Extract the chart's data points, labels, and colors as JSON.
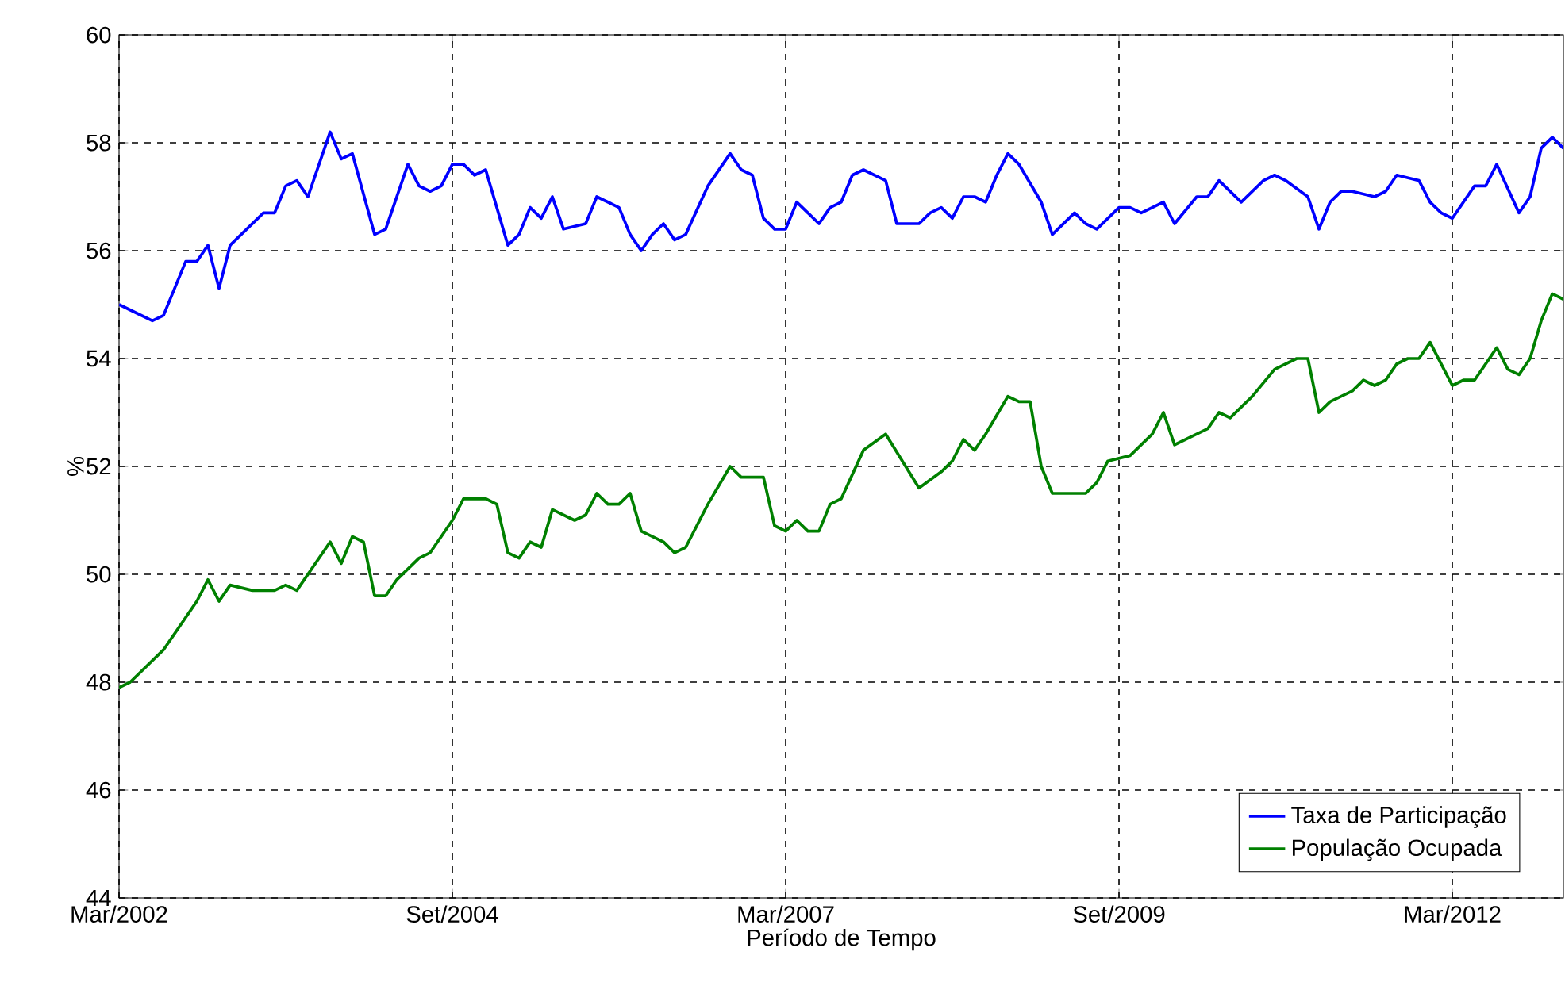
{
  "chart_data": {
    "type": "line",
    "xlabel": "Período de Tempo",
    "ylabel": "%",
    "xlim": [
      "2002-03",
      "2013-01"
    ],
    "ylim": [
      44,
      60
    ],
    "xticks": [
      {
        "value": "2002-03",
        "label": "Mar/2002"
      },
      {
        "value": "2004-09",
        "label": "Set/2004"
      },
      {
        "value": "2007-03",
        "label": "Mar/2007"
      },
      {
        "value": "2009-09",
        "label": "Set/2009"
      },
      {
        "value": "2012-03",
        "label": "Mar/2012"
      }
    ],
    "yticks": [
      44,
      46,
      48,
      50,
      52,
      54,
      56,
      58,
      60
    ],
    "grid": true,
    "legend": "bottom right",
    "line_style": "solid",
    "series": [
      {
        "name": "Taxa de Participação",
        "color": "#0000ff",
        "x": [
          "2002-03",
          "2002-04",
          "2002-06",
          "2002-07",
          "2002-09",
          "2002-10",
          "2002-11",
          "2002-12",
          "2003-01",
          "2003-02",
          "2003-04",
          "2003-05",
          "2003-06",
          "2003-07",
          "2003-08",
          "2003-09",
          "2003-10",
          "2003-11",
          "2003-12",
          "2004-02",
          "2004-03",
          "2004-04",
          "2004-05",
          "2004-06",
          "2004-07",
          "2004-08",
          "2004-09",
          "2004-10",
          "2004-11",
          "2004-12",
          "2005-02",
          "2005-03",
          "2005-04",
          "2005-05",
          "2005-06",
          "2005-07",
          "2005-09",
          "2005-10",
          "2005-11",
          "2005-12",
          "2006-01",
          "2006-02",
          "2006-03",
          "2006-04",
          "2006-05",
          "2006-06",
          "2006-08",
          "2006-10",
          "2006-11",
          "2006-12",
          "2007-01",
          "2007-02",
          "2007-03",
          "2007-04",
          "2007-06",
          "2007-07",
          "2007-08",
          "2007-09",
          "2007-10",
          "2007-12",
          "2008-01",
          "2008-03",
          "2008-04",
          "2008-05",
          "2008-06",
          "2008-07",
          "2008-08",
          "2008-09",
          "2008-10",
          "2008-11",
          "2008-12",
          "2009-02",
          "2009-03",
          "2009-05",
          "2009-06",
          "2009-07",
          "2009-09",
          "2009-10",
          "2009-11",
          "2010-01",
          "2010-02",
          "2010-04",
          "2010-05",
          "2010-06",
          "2010-08",
          "2010-10",
          "2010-11",
          "2010-12",
          "2011-02",
          "2011-03",
          "2011-04",
          "2011-05",
          "2011-06",
          "2011-08",
          "2011-09",
          "2011-10",
          "2011-12",
          "2012-01",
          "2012-02",
          "2012-03",
          "2012-05",
          "2012-06",
          "2012-07",
          "2012-09",
          "2012-10",
          "2012-11",
          "2012-12",
          "2013-01"
        ],
        "values": [
          55.0,
          54.9,
          54.7,
          54.8,
          55.8,
          55.8,
          56.1,
          55.3,
          56.1,
          56.3,
          56.7,
          56.7,
          57.2,
          57.3,
          57.0,
          57.6,
          58.2,
          57.7,
          57.8,
          56.3,
          56.4,
          57.0,
          57.6,
          57.2,
          57.1,
          57.2,
          57.6,
          57.6,
          57.4,
          57.5,
          56.1,
          56.3,
          56.8,
          56.6,
          57.0,
          56.4,
          56.5,
          57.0,
          56.9,
          56.8,
          56.3,
          56.0,
          56.3,
          56.5,
          56.2,
          56.3,
          57.2,
          57.8,
          57.5,
          57.4,
          56.6,
          56.4,
          56.4,
          56.9,
          56.5,
          56.8,
          56.9,
          57.4,
          57.5,
          57.3,
          56.5,
          56.5,
          56.7,
          56.8,
          56.6,
          57.0,
          57.0,
          56.9,
          57.4,
          57.8,
          57.6,
          56.9,
          56.3,
          56.7,
          56.5,
          56.4,
          56.8,
          56.8,
          56.7,
          56.9,
          56.5,
          57.0,
          57.0,
          57.3,
          56.9,
          57.3,
          57.4,
          57.3,
          57.0,
          56.4,
          56.9,
          57.1,
          57.1,
          57.0,
          57.1,
          57.4,
          57.3,
          56.9,
          56.7,
          56.6,
          57.2,
          57.2,
          57.6,
          56.7,
          57.0,
          57.9,
          58.1,
          57.9
        ]
      },
      {
        "name": "População Ocupada",
        "color": "#008000",
        "x": [
          "2002-03",
          "2002-04",
          "2002-07",
          "2002-09",
          "2002-10",
          "2002-11",
          "2002-12",
          "2003-01",
          "2003-03",
          "2003-05",
          "2003-06",
          "2003-07",
          "2003-08",
          "2003-10",
          "2003-11",
          "2003-12",
          "2004-01",
          "2004-02",
          "2004-03",
          "2004-04",
          "2004-06",
          "2004-07",
          "2004-09",
          "2004-10",
          "2004-12",
          "2005-01",
          "2005-02",
          "2005-03",
          "2005-04",
          "2005-05",
          "2005-06",
          "2005-08",
          "2005-09",
          "2005-10",
          "2005-11",
          "2005-12",
          "2006-01",
          "2006-02",
          "2006-03",
          "2006-04",
          "2006-05",
          "2006-06",
          "2006-07",
          "2006-08",
          "2006-10",
          "2006-11",
          "2006-12",
          "2007-01",
          "2007-02",
          "2007-03",
          "2007-04",
          "2007-05",
          "2007-06",
          "2007-07",
          "2007-08",
          "2007-10",
          "2007-12",
          "2008-03",
          "2008-05",
          "2008-06",
          "2008-07",
          "2008-08",
          "2008-09",
          "2008-11",
          "2008-12",
          "2009-01",
          "2009-02",
          "2009-03",
          "2009-06",
          "2009-07",
          "2009-08",
          "2009-10",
          "2009-11",
          "2009-12",
          "2010-01",
          "2010-02",
          "2010-04",
          "2010-05",
          "2010-06",
          "2010-07",
          "2010-09",
          "2010-11",
          "2011-01",
          "2011-02",
          "2011-03",
          "2011-04",
          "2011-06",
          "2011-07",
          "2011-08",
          "2011-09",
          "2011-10",
          "2011-11",
          "2011-12",
          "2012-01",
          "2012-02",
          "2012-03",
          "2012-04",
          "2012-05",
          "2012-07",
          "2012-08",
          "2012-09",
          "2012-10",
          "2012-11",
          "2012-12",
          "2013-01"
        ],
        "values": [
          47.9,
          48.0,
          48.6,
          49.2,
          49.5,
          49.9,
          49.5,
          49.8,
          49.7,
          49.7,
          49.8,
          49.7,
          50.0,
          50.6,
          50.2,
          50.7,
          50.6,
          49.6,
          49.6,
          49.9,
          50.3,
          50.4,
          51.0,
          51.4,
          51.4,
          51.3,
          50.4,
          50.3,
          50.6,
          50.5,
          51.2,
          51.0,
          51.1,
          51.5,
          51.3,
          51.3,
          51.5,
          50.8,
          50.7,
          50.6,
          50.4,
          50.5,
          50.9,
          51.3,
          52.0,
          51.8,
          51.8,
          51.8,
          50.9,
          50.8,
          51.0,
          50.8,
          50.8,
          51.3,
          51.4,
          52.3,
          52.6,
          51.6,
          51.9,
          52.1,
          52.5,
          52.3,
          52.6,
          53.3,
          53.2,
          53.2,
          52.0,
          51.5,
          51.5,
          51.7,
          52.1,
          52.2,
          52.4,
          52.6,
          53.0,
          52.4,
          52.6,
          52.7,
          53.0,
          52.9,
          53.3,
          53.8,
          54.0,
          54.0,
          53.0,
          53.2,
          53.4,
          53.6,
          53.5,
          53.6,
          53.9,
          54.0,
          54.0,
          54.3,
          53.9,
          53.5,
          53.6,
          53.6,
          54.2,
          53.8,
          53.7,
          54.0,
          54.7,
          55.2,
          55.1
        ]
      }
    ]
  }
}
